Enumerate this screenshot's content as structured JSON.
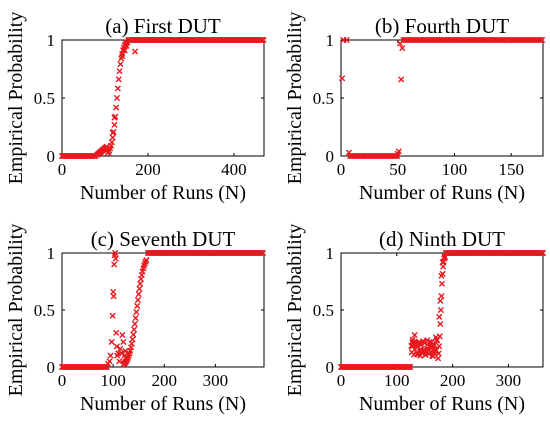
{
  "figure": {
    "marker_color": "#e8191f",
    "background": "#ffffff"
  },
  "chart_data": [
    {
      "type": "scatter",
      "title": "(a) First DUT",
      "xlabel": "Number of Runs (N)",
      "ylabel": "Empirical Probability",
      "xlim": [
        0,
        470
      ],
      "ylim": [
        0,
        1
      ],
      "xticks": [
        0,
        200,
        400
      ],
      "yticks": [
        0,
        0.5,
        1
      ],
      "xtick_labels": [
        "0",
        "200",
        "400"
      ],
      "ytick_labels": [
        "0",
        "0.5",
        "1"
      ],
      "segments": [
        {
          "from": 0,
          "to": 80,
          "step": 3,
          "shape": "flat",
          "y": 0.0
        },
        {
          "from": 82,
          "to": 104,
          "step": 2,
          "shape": "linear",
          "y0": 0.01,
          "y1": 0.08
        },
        {
          "from": 106,
          "to": 152,
          "step": 2,
          "shape": "sigmoid",
          "center": 128,
          "width": 6
        },
        {
          "from": 154,
          "to": 470,
          "step": 3,
          "shape": "flat",
          "y": 1.0
        }
      ],
      "extra_points": [
        [
          140,
          0.86
        ],
        [
          146,
          0.91
        ],
        [
          150,
          0.95
        ],
        [
          170,
          0.9
        ],
        [
          122,
          0.33
        ],
        [
          118,
          0.2
        ]
      ]
    },
    {
      "type": "scatter",
      "title": "(b) Fourth DUT",
      "xlabel": "Number of Runs (N)",
      "ylabel": "Empirical Probability",
      "xlim": [
        0,
        178
      ],
      "ylim": [
        0,
        1
      ],
      "xticks": [
        0,
        50,
        100,
        150
      ],
      "yticks": [
        0,
        0.5,
        1
      ],
      "xtick_labels": [
        "0",
        "50",
        "100",
        "150"
      ],
      "ytick_labels": [
        "0",
        "0.5",
        "1"
      ],
      "segments": [
        {
          "from": 8,
          "to": 50,
          "step": 1.3,
          "shape": "flat",
          "y": 0.0
        },
        {
          "from": 55,
          "to": 178,
          "step": 1.3,
          "shape": "flat",
          "y": 1.0
        }
      ],
      "extra_points": [
        [
          1,
          0.67
        ],
        [
          2,
          1.0
        ],
        [
          5,
          1.0
        ],
        [
          7,
          0.03
        ],
        [
          50,
          0.02
        ],
        [
          51,
          0.04
        ],
        [
          52,
          0.97
        ],
        [
          53,
          0.66
        ],
        [
          54,
          0.93
        ]
      ]
    },
    {
      "type": "scatter",
      "title": "(c) Seventh DUT",
      "xlabel": "Number of Runs (N)",
      "ylabel": "Empirical Probability",
      "xlim": [
        0,
        395
      ],
      "ylim": [
        0,
        1
      ],
      "xticks": [
        0,
        100,
        200,
        300
      ],
      "yticks": [
        0,
        0.5,
        1
      ],
      "xtick_labels": [
        "0",
        "100",
        "200",
        "300"
      ],
      "ytick_labels": [
        "0",
        "0.5",
        "1"
      ],
      "segments": [
        {
          "from": 0,
          "to": 88,
          "step": 2.5,
          "shape": "flat",
          "y": 0.0
        },
        {
          "from": 120,
          "to": 166,
          "step": 1.5,
          "shape": "sigmoid",
          "center": 146,
          "width": 7
        },
        {
          "from": 168,
          "to": 395,
          "step": 2.5,
          "shape": "flat",
          "y": 1.0
        }
      ],
      "extra_points": [
        [
          90,
          0.03
        ],
        [
          93,
          0.05
        ],
        [
          95,
          0.1
        ],
        [
          97,
          0.22
        ],
        [
          99,
          0.45
        ],
        [
          100,
          0.66
        ],
        [
          101,
          0.62
        ],
        [
          102,
          0.9
        ],
        [
          103,
          0.98
        ],
        [
          104,
          1.0
        ],
        [
          105,
          0.95
        ],
        [
          106,
          0.3
        ],
        [
          107,
          0.18
        ],
        [
          108,
          0.1
        ],
        [
          110,
          0.12
        ],
        [
          112,
          0.05
        ],
        [
          114,
          0.16
        ],
        [
          116,
          0.12
        ],
        [
          118,
          0.28
        ],
        [
          120,
          0.22
        ],
        [
          122,
          0.1
        ],
        [
          124,
          0.14
        ],
        [
          126,
          0.08
        ]
      ]
    },
    {
      "type": "scatter",
      "title": "(d) Ninth DUT",
      "xlabel": "Number of Runs (N)",
      "ylabel": "Empirical Probability",
      "xlim": [
        0,
        362
      ],
      "ylim": [
        0,
        1
      ],
      "xticks": [
        0,
        100,
        200,
        300
      ],
      "yticks": [
        0,
        0.5,
        1
      ],
      "xtick_labels": [
        "0",
        "100",
        "200",
        "300"
      ],
      "ytick_labels": [
        "0",
        "0.5",
        "1"
      ],
      "segments": [
        {
          "from": 0,
          "to": 124,
          "step": 2,
          "shape": "flat",
          "y": 0.0
        },
        {
          "from": 126,
          "to": 172,
          "step": 0.8,
          "shape": "band",
          "low": 0.08,
          "high": 0.24
        },
        {
          "from": 174,
          "to": 186,
          "step": 1,
          "shape": "sigmoid",
          "center": 179,
          "width": 2
        },
        {
          "from": 188,
          "to": 362,
          "step": 2,
          "shape": "flat",
          "y": 1.0
        }
      ],
      "extra_points": [
        [
          128,
          0.22
        ],
        [
          132,
          0.28
        ],
        [
          170,
          0.26
        ],
        [
          172,
          0.24
        ],
        [
          176,
          0.44
        ],
        [
          178,
          0.58
        ],
        [
          180,
          0.8
        ],
        [
          182,
          0.92
        ],
        [
          186,
          0.96
        ]
      ]
    }
  ]
}
